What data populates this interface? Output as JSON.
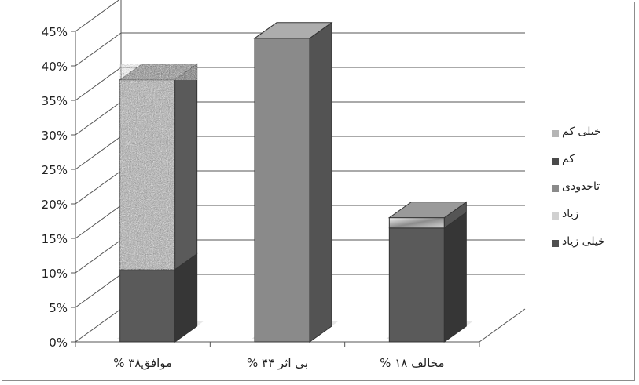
{
  "chart_data": {
    "type": "bar",
    "stacked": true,
    "three_d": true,
    "categories": [
      "موافق۳۸ %",
      "بی اثر ۴۴ %",
      "مخالف ۱۸ %"
    ],
    "y_ticks": [
      "0%",
      "5%",
      "10%",
      "15%",
      "20%",
      "25%",
      "30%",
      "35%",
      "40%",
      "45%"
    ],
    "ylim": [
      0,
      45
    ],
    "grid": true,
    "legend_position": "right",
    "series": [
      {
        "name": "خیلی زیاد",
        "values": [
          10.5,
          0,
          16.5
        ],
        "color": "#5a5a5a",
        "pattern": "solid"
      },
      {
        "name": "زیاد",
        "values": [
          0,
          0,
          0
        ],
        "color": "#c8c8c8",
        "pattern": "light"
      },
      {
        "name": "تاحدودی",
        "values": [
          0,
          44,
          0
        ],
        "color": "#8a8a8a",
        "pattern": "solid"
      },
      {
        "name": "کم",
        "values": [
          0,
          0,
          1.5
        ],
        "color": "#5a5a5a",
        "pattern": "gradient"
      },
      {
        "name": "خیلی کم",
        "values": [
          27.5,
          0,
          0
        ],
        "color": "#a0a0a0",
        "pattern": "speckle"
      }
    ]
  },
  "legend": {
    "items": [
      {
        "label": "خیلی کم",
        "color": "#b5b5b5"
      },
      {
        "label": "کم",
        "color": "#4a4a4a"
      },
      {
        "label": "تاحدودی",
        "color": "#8a8a8a"
      },
      {
        "label": "زیاد",
        "color": "#d0d0d0"
      },
      {
        "label": "خیلی زیاد",
        "color": "#4f4f4f"
      }
    ]
  }
}
